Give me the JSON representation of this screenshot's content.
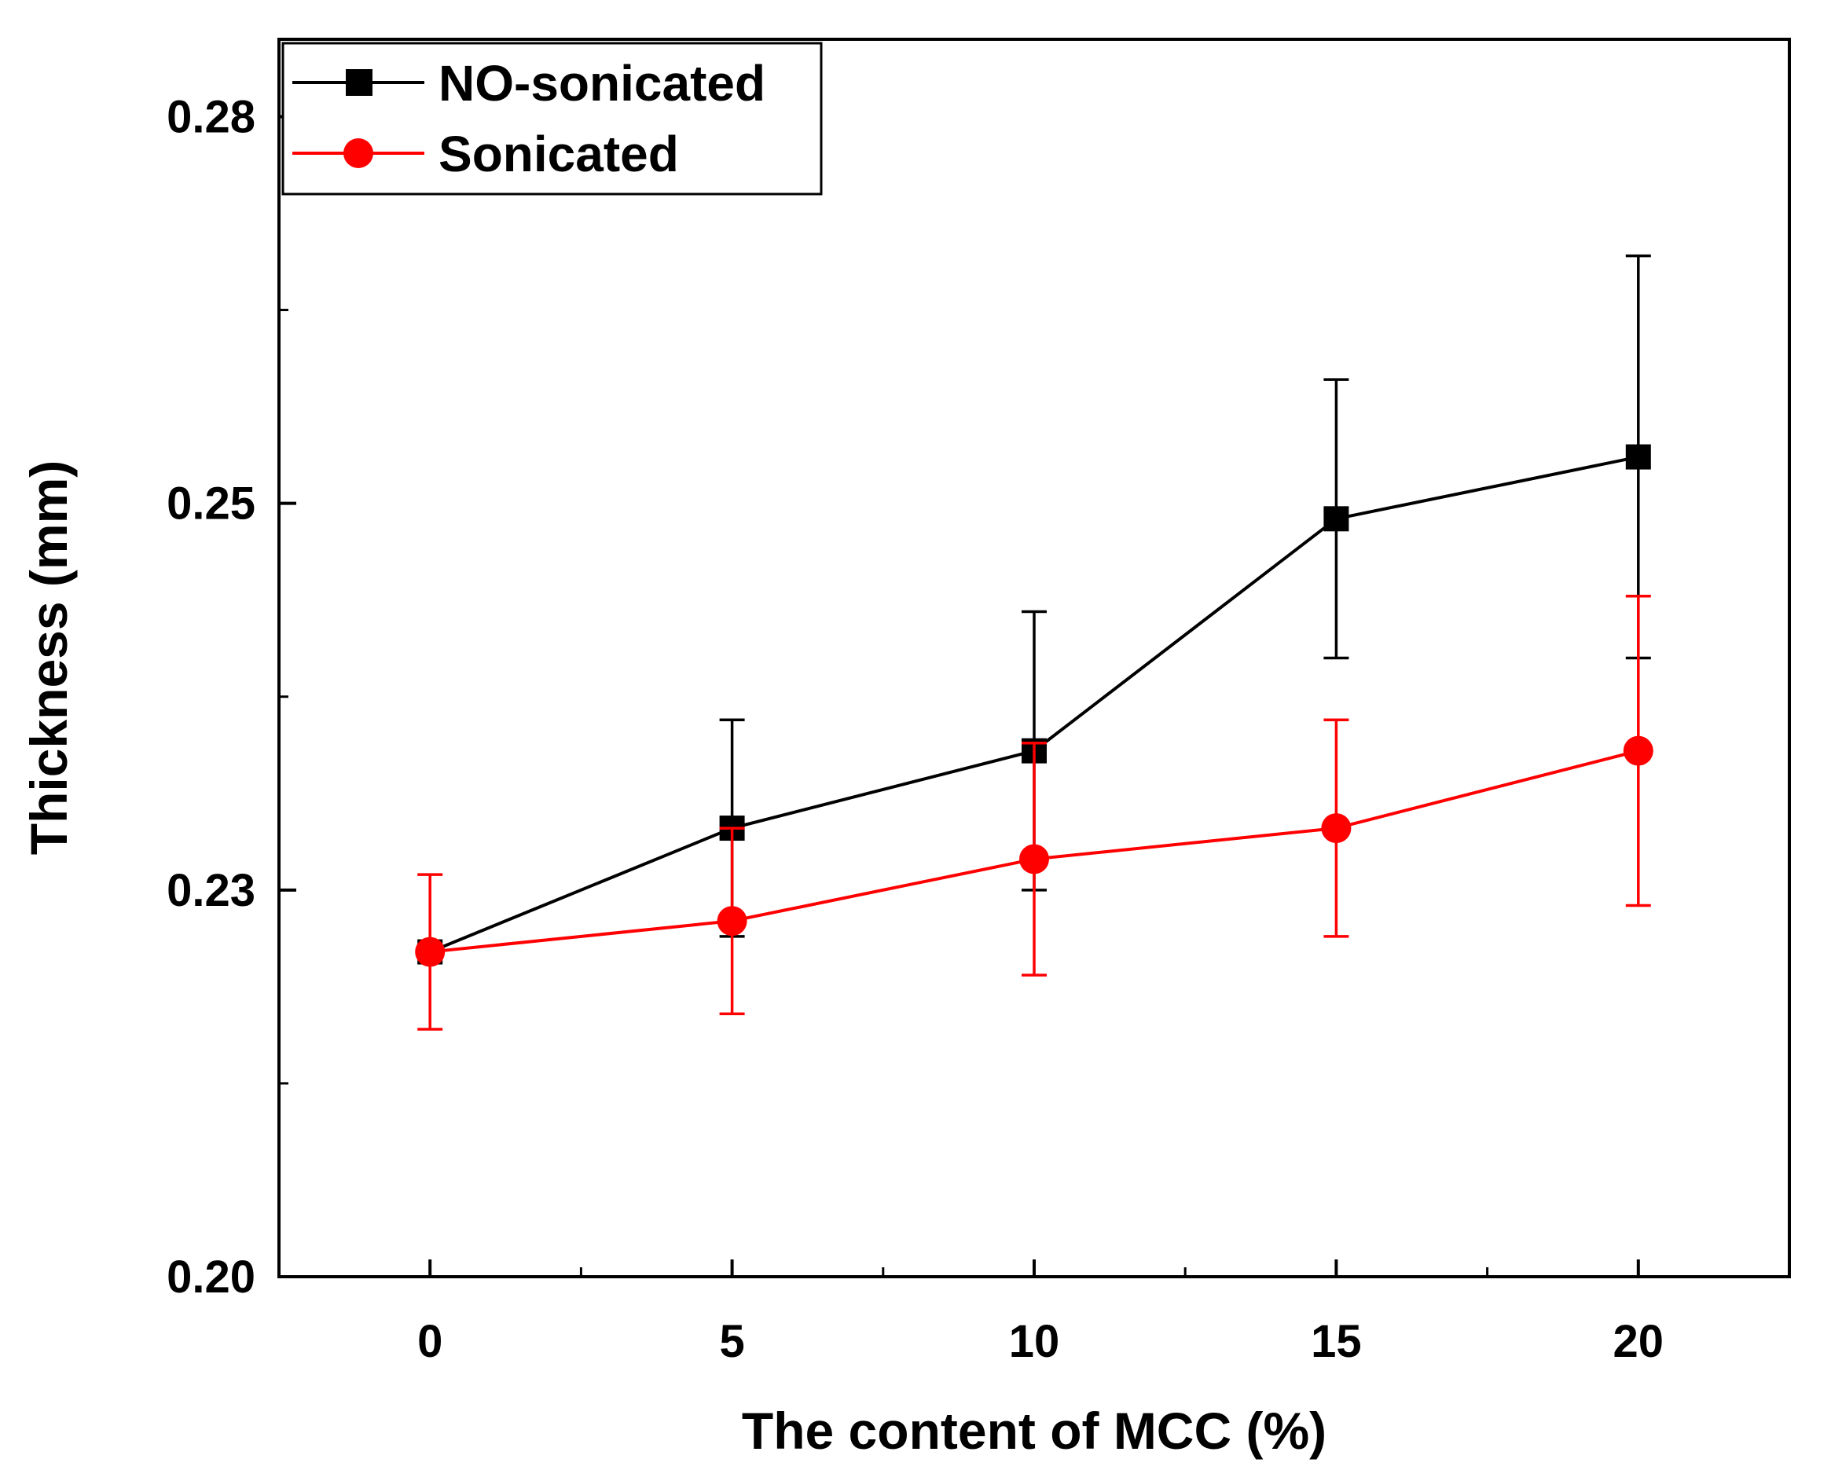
{
  "chart_data": {
    "type": "line",
    "title": "",
    "xlabel": "The content of MCC (%)",
    "ylabel": "Thickness (mm)",
    "xlim": [
      -2.5,
      22.5
    ],
    "ylim": [
      0.2,
      0.28
    ],
    "x": [
      0,
      5,
      10,
      15,
      20
    ],
    "x_ticks": [
      0,
      5,
      10,
      15,
      20
    ],
    "x_tick_labels": [
      "0",
      "5",
      "10",
      "15",
      "20"
    ],
    "y_ticks": [
      0.2,
      0.225,
      0.25,
      0.275
    ],
    "y_tick_labels": [
      "0.20",
      "0.23",
      "0.25",
      "0.28"
    ],
    "y_minor_ticks": [
      0.2125,
      0.2375,
      0.2625
    ],
    "x_minor_ticks": [
      2.5,
      7.5,
      12.5,
      17.5
    ],
    "grid": false,
    "legend_position": "top-left",
    "series": [
      {
        "name": "NO-sonicated",
        "color": "#000000",
        "marker": "square",
        "values": [
          0.221,
          0.229,
          0.234,
          0.249,
          0.253
        ],
        "errors": [
          0.0,
          0.007,
          0.009,
          0.009,
          0.013
        ]
      },
      {
        "name": "Sonicated",
        "color": "#ff0000",
        "marker": "circle",
        "values": [
          0.221,
          0.223,
          0.227,
          0.229,
          0.234
        ],
        "errors": [
          0.005,
          0.006,
          0.0075,
          0.007,
          0.01
        ]
      }
    ]
  }
}
